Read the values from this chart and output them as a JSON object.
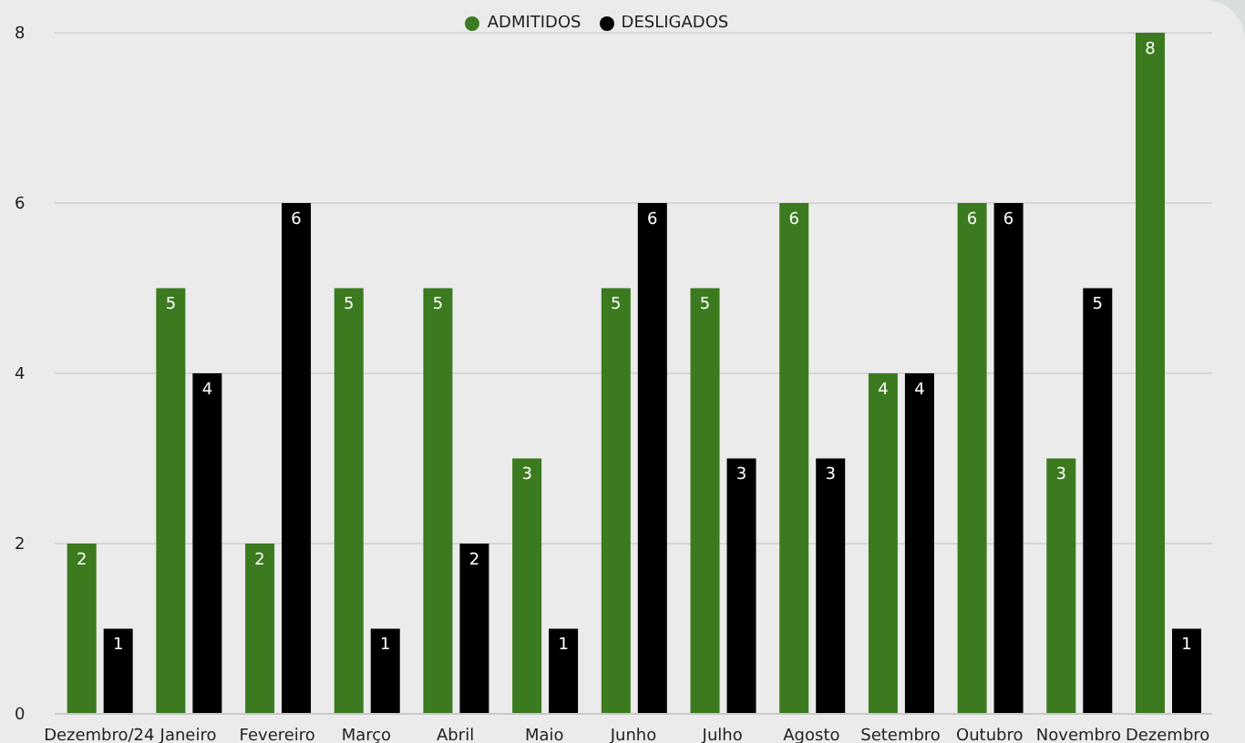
{
  "chart_data": {
    "type": "bar",
    "categories": [
      "Dezembro/24",
      "Janeiro",
      "Fevereiro",
      "Março",
      "Abril",
      "Maio",
      "Junho",
      "Julho",
      "Agosto",
      "Setembro",
      "Outubro",
      "Novembro",
      "Dezembro"
    ],
    "series": [
      {
        "name": "ADMITIDOS",
        "color": "#3b7a1e",
        "values": [
          2,
          5,
          2,
          5,
          5,
          3,
          5,
          5,
          6,
          4,
          6,
          3,
          8
        ]
      },
      {
        "name": "DESLIGADOS",
        "color": "#000000",
        "values": [
          1,
          4,
          6,
          1,
          2,
          1,
          6,
          3,
          3,
          4,
          6,
          5,
          1
        ]
      }
    ],
    "ylim": [
      0,
      8
    ],
    "yticks": [
      0,
      2,
      4,
      6,
      8
    ],
    "grid": "y",
    "legend": "top",
    "data_labels": true
  }
}
